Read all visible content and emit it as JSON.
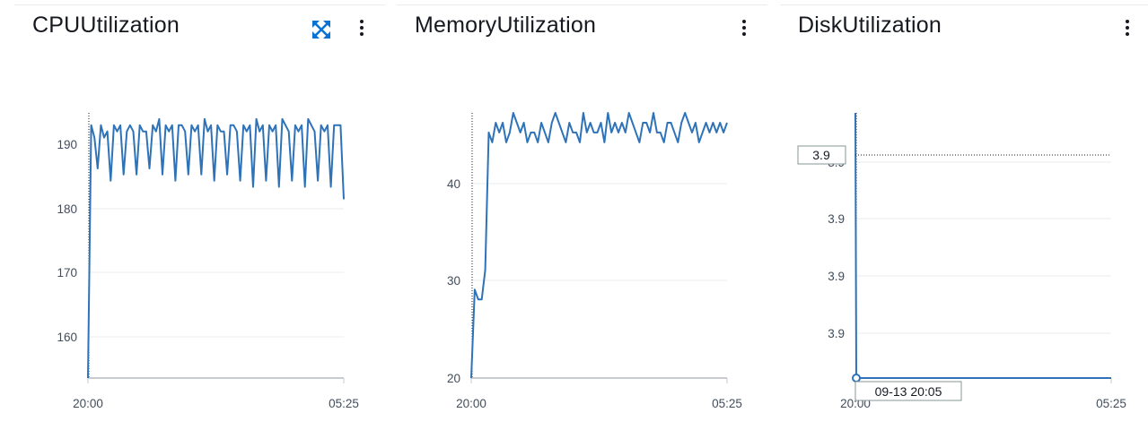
{
  "colors": {
    "series": "#2e73b8",
    "grid": "#e9ebed",
    "axis": "#c8cbd0",
    "text": "#414d5c",
    "title": "#16191f"
  },
  "icons": {
    "expand": "expand-icon",
    "menu": "vertical-ellipsis-icon"
  },
  "panels": [
    {
      "title": "CPUUtilization",
      "has_expand": true
    },
    {
      "title": "MemoryUtilization",
      "has_expand": false
    },
    {
      "title": "DiskUtilization",
      "has_expand": false
    }
  ],
  "chart_data": [
    {
      "type": "line",
      "title": "CPUUtilization",
      "x_ticks": [
        "20:00",
        "05:25"
      ],
      "y_ticks": [
        "160",
        "170",
        "180",
        "190"
      ],
      "ylim": [
        153,
        196
      ],
      "grid": true,
      "series": [
        {
          "values": [
            153,
            194,
            192,
            187,
            194,
            192,
            193,
            185,
            194,
            193,
            194,
            186,
            193,
            194,
            193,
            186,
            194,
            193,
            193,
            187,
            194,
            193,
            195,
            186,
            194,
            193,
            194,
            185,
            194,
            194,
            193,
            186,
            194,
            193,
            194,
            186,
            195,
            193,
            194,
            185,
            194,
            193,
            193,
            186,
            194,
            194,
            193,
            185,
            194,
            193,
            194,
            184,
            195,
            193,
            194,
            185,
            194,
            193,
            194,
            184,
            195,
            194,
            193,
            185,
            194,
            193,
            194,
            184,
            195,
            194,
            193,
            185,
            194,
            193,
            194,
            184,
            194,
            194,
            194,
            182
          ]
        }
      ]
    },
    {
      "type": "line",
      "title": "MemoryUtilization",
      "x_ticks": [
        "20:00",
        "05:25"
      ],
      "y_ticks": [
        "20",
        "30",
        "40"
      ],
      "ylim": [
        20,
        47
      ],
      "grid": true,
      "series": [
        {
          "values": [
            20,
            29,
            28,
            28,
            31,
            45,
            44,
            46,
            45,
            46,
            44,
            45,
            47,
            46,
            45,
            46,
            44,
            45,
            45,
            44,
            46,
            45,
            44,
            46,
            47,
            46,
            45,
            44,
            46,
            45,
            45,
            44,
            47,
            45,
            46,
            45,
            45,
            46,
            44,
            47,
            45,
            46,
            45,
            46,
            45,
            47,
            46,
            45,
            44,
            46,
            46,
            45,
            47,
            45,
            45,
            44,
            46,
            46,
            45,
            44,
            46,
            47,
            46,
            45,
            46,
            44,
            45,
            46,
            45,
            46,
            45,
            46,
            45,
            46
          ]
        }
      ]
    },
    {
      "type": "line",
      "title": "DiskUtilization",
      "x_ticks": [
        "20:00",
        "05:25"
      ],
      "y_ticks": [
        "3.9",
        "3.9",
        "3.9",
        "3.9"
      ],
      "ylim": [
        0,
        1
      ],
      "grid": true,
      "tooltip_y": "3.9",
      "tooltip_x": "09-13 20:05",
      "series": [
        {
          "values": [
            1.0,
            0.0,
            0.0,
            0.0,
            0.0,
            0.0,
            0.0,
            0.0,
            0.0,
            0.0
          ]
        }
      ]
    }
  ]
}
